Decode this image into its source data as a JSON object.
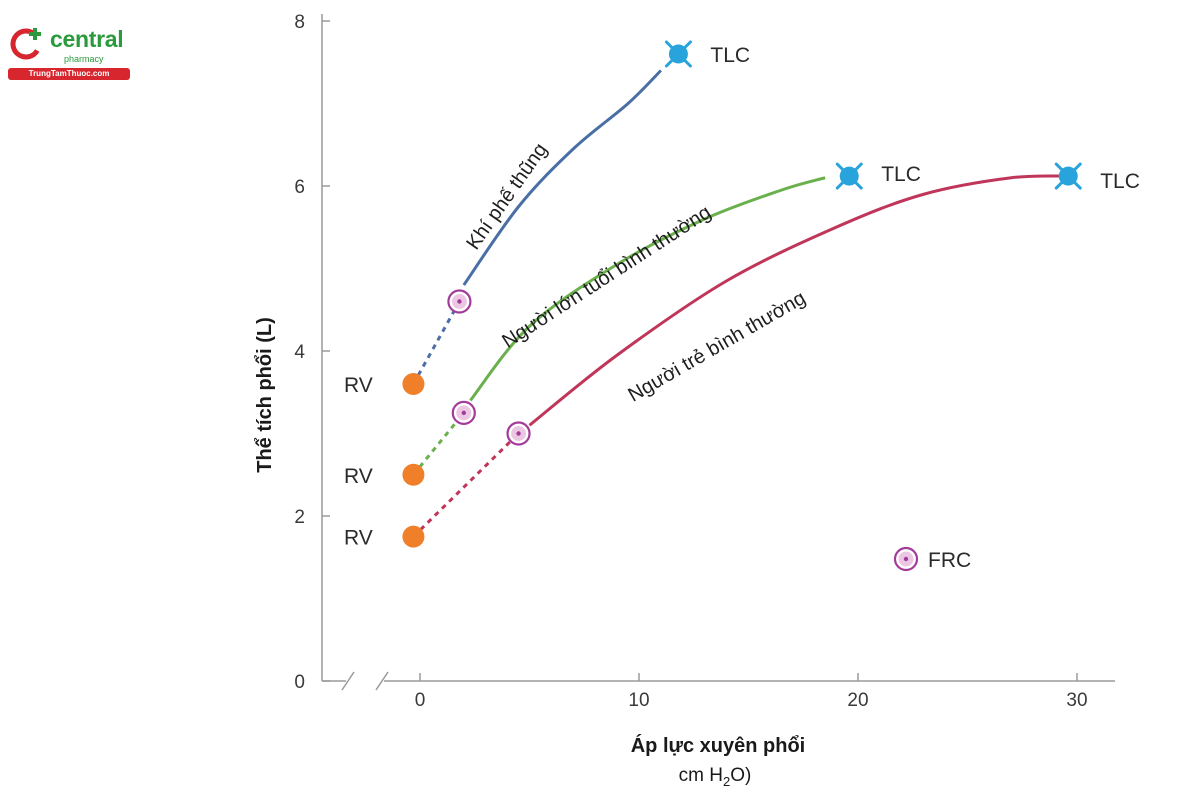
{
  "logo": {
    "brand": "central",
    "sub": "pharmacy",
    "banner": "TrungTamThuoc.com",
    "colors": {
      "green": "#2a9a3c",
      "red": "#d7262e"
    }
  },
  "chart_data": {
    "type": "line",
    "title": "",
    "xlabel": "Áp lực xuyên phổi",
    "xunit_before": "cm H",
    "xunit_sub": "2",
    "xunit_after": "O)",
    "ylabel": "Thể tích phổi (L)",
    "xlim": [
      -5,
      32
    ],
    "ylim": [
      0,
      8
    ],
    "xticks": [
      0,
      10,
      20,
      30
    ],
    "yticks": [
      0,
      2,
      4,
      6,
      8
    ],
    "axis_break": true,
    "grid": false,
    "series": [
      {
        "name": "Khí phế thũng",
        "color": "#4a6fa5",
        "dashed": [
          [
            -0.3,
            3.6
          ],
          [
            1.8,
            4.6
          ]
        ],
        "solid": [
          [
            2.0,
            4.8
          ],
          [
            4.5,
            5.75
          ],
          [
            7.0,
            6.45
          ],
          [
            9.5,
            7.0
          ],
          [
            11.0,
            7.4
          ]
        ],
        "rv": [
          -0.3,
          3.6
        ],
        "frc": [
          1.8,
          4.6
        ],
        "tlc": [
          11.8,
          7.6
        ]
      },
      {
        "name": "Người lớn tuổi bình thường",
        "color": "#6ab04c",
        "dashed": [
          [
            -0.3,
            2.5
          ],
          [
            2.0,
            3.25
          ]
        ],
        "solid": [
          [
            2.3,
            3.4
          ],
          [
            5.0,
            4.3
          ],
          [
            9.0,
            5.05
          ],
          [
            13.0,
            5.6
          ],
          [
            16.5,
            5.95
          ],
          [
            18.5,
            6.1
          ]
        ],
        "rv": [
          -0.3,
          2.5
        ],
        "frc": [
          2.0,
          3.25
        ],
        "tlc": [
          19.6,
          6.12
        ]
      },
      {
        "name": "Người trẻ bình thường",
        "color": "#c0365a",
        "dashed": [
          [
            -0.3,
            1.75
          ],
          [
            4.5,
            3.0
          ]
        ],
        "solid": [
          [
            5.0,
            3.1
          ],
          [
            9.0,
            3.95
          ],
          [
            14.0,
            4.85
          ],
          [
            19.0,
            5.5
          ],
          [
            23.0,
            5.9
          ],
          [
            27.0,
            6.1
          ],
          [
            29.6,
            6.12
          ]
        ],
        "rv": [
          -0.3,
          1.75
        ],
        "frc": [
          4.5,
          3.0
        ],
        "tlc": [
          29.6,
          6.12
        ]
      }
    ],
    "point_labels": {
      "rv": "RV",
      "tlc": "TLC",
      "frc": "FRC"
    },
    "legend": {
      "frc_label": "FRC",
      "position": "bottom-right"
    },
    "colors": {
      "rv": "#f07f2a",
      "tlc": "#29a3dc",
      "frc": "#a23b9a",
      "axis": "#9a9a9a"
    }
  }
}
